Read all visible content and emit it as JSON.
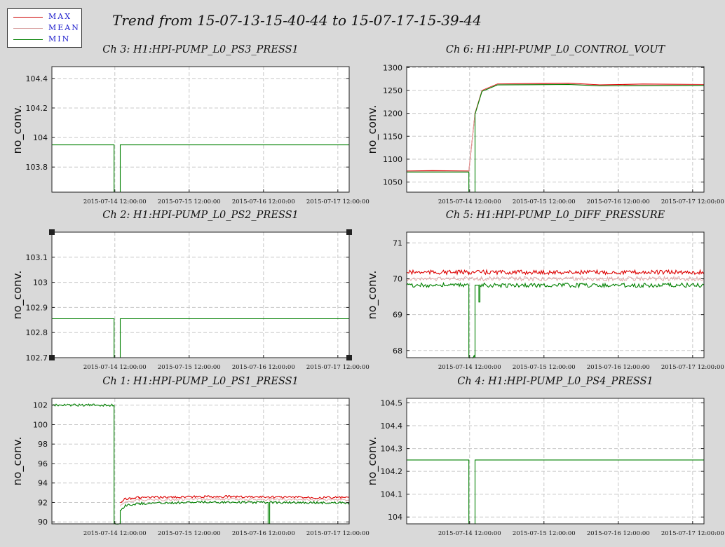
{
  "legend": {
    "items": [
      {
        "label": "MAX",
        "color": "#cc0000"
      },
      {
        "label": "MEAN",
        "color": "#d7a0a0"
      },
      {
        "label": "MIN",
        "color": "#008000"
      }
    ]
  },
  "title": "Trend from 15-07-13-15-40-44 to 15-07-17-15-39-44",
  "colors": {
    "max": "#dd0000",
    "mean": "#e0a8a8",
    "min": "#008000",
    "grid": "#c8c8c8",
    "background": "#d9d9d9"
  },
  "x_tick_labels": [
    "2015-07-14 12:00:00",
    "2015-07-15 12:00:00",
    "2015-07-16 12:00:00",
    "2015-07-17 12:00:00"
  ],
  "chart_data": [
    {
      "type": "line",
      "title": "Ch 3: H1:HPI-PUMP_L0_PS3_PRESS1",
      "ylabel": "no_conv.",
      "x_range": [
        "2015-07-13 15:40:44",
        "2015-07-17 15:39:44"
      ],
      "ylim": [
        103.63,
        104.48
      ],
      "yticks": [
        103.8,
        104,
        104.2,
        104.4
      ],
      "ytick_labels": [
        "103.8",
        "104",
        "104.2",
        "104.4"
      ],
      "grid": true,
      "series": [
        {
          "name": "MIN",
          "points": [
            [
              "2015-07-13 15:40:44",
              103.95
            ],
            [
              "2015-07-14 11:45:00",
              103.95
            ],
            [
              "2015-07-14 11:45:00",
              103.63
            ],
            [
              "2015-07-14 13:45:00",
              103.63
            ],
            [
              "2015-07-14 13:45:00",
              103.95
            ],
            [
              "2015-07-17 15:39:44",
              103.95
            ]
          ]
        }
      ]
    },
    {
      "type": "line",
      "title": "Ch 6: H1:HPI-PUMP_L0_CONTROL_VOUT",
      "ylabel": "no_conv.",
      "x_range": [
        "2015-07-13 15:40:44",
        "2015-07-17 15:39:44"
      ],
      "ylim": [
        1028,
        1302
      ],
      "yticks": [
        1050,
        1100,
        1150,
        1200,
        1250,
        1300
      ],
      "ytick_labels": [
        "1050",
        "1100",
        "1150",
        "1200",
        "1250",
        "1300"
      ],
      "grid": true,
      "series": [
        {
          "name": "MAX",
          "points": [
            [
              "2015-07-13 15:40:44",
              1074
            ],
            [
              "2015-07-14 00:00:00",
              1075
            ],
            [
              "2015-07-14 11:45:00",
              1074
            ],
            [
              "2015-07-14 13:45:00",
              1200
            ],
            [
              "2015-07-14 16:00:00",
              1250
            ],
            [
              "2015-07-14 21:00:00",
              1264
            ],
            [
              "2015-07-15 06:00:00",
              1265
            ],
            [
              "2015-07-15 20:00:00",
              1266
            ],
            [
              "2015-07-16 06:00:00",
              1262
            ],
            [
              "2015-07-16 20:00:00",
              1264
            ],
            [
              "2015-07-17 15:39:44",
              1263
            ]
          ]
        },
        {
          "name": "MEAN",
          "points": [
            [
              "2015-07-13 15:40:44",
              1073
            ],
            [
              "2015-07-14 11:45:00",
              1073
            ],
            [
              "2015-07-14 13:45:00",
              1199
            ],
            [
              "2015-07-14 16:00:00",
              1249
            ],
            [
              "2015-07-14 21:00:00",
              1263
            ],
            [
              "2015-07-15 20:00:00",
              1264
            ],
            [
              "2015-07-16 06:00:00",
              1261
            ],
            [
              "2015-07-17 15:39:44",
              1262
            ]
          ]
        },
        {
          "name": "MIN",
          "points": [
            [
              "2015-07-13 15:40:44",
              1072
            ],
            [
              "2015-07-14 11:45:00",
              1072
            ],
            [
              "2015-07-14 11:45:00",
              1028
            ],
            [
              "2015-07-14 13:45:00",
              1028
            ],
            [
              "2015-07-14 13:45:00",
              1198
            ],
            [
              "2015-07-14 16:00:00",
              1248
            ],
            [
              "2015-07-14 21:00:00",
              1262
            ],
            [
              "2015-07-15 20:00:00",
              1263
            ],
            [
              "2015-07-16 06:00:00",
              1260
            ],
            [
              "2015-07-17 15:39:44",
              1261
            ]
          ]
        }
      ]
    },
    {
      "type": "line",
      "title": "Ch 2: H1:HPI-PUMP_L0_PS2_PRESS1",
      "ylabel": "no_conv.",
      "x_range": [
        "2015-07-13 15:40:44",
        "2015-07-17 15:39:44"
      ],
      "ylim": [
        102.7,
        103.2
      ],
      "yticks": [
        102.7,
        102.8,
        102.9,
        103,
        103.1
      ],
      "ytick_labels": [
        "102.7",
        "102.8",
        "102.9",
        "103",
        "103.1"
      ],
      "grid": true,
      "series": [
        {
          "name": "MIN",
          "points": [
            [
              "2015-07-13 15:40:44",
              102.855
            ],
            [
              "2015-07-14 11:45:00",
              102.855
            ],
            [
              "2015-07-14 11:45:00",
              102.7
            ],
            [
              "2015-07-14 13:45:00",
              102.7
            ],
            [
              "2015-07-14 13:45:00",
              102.855
            ],
            [
              "2015-07-17 15:39:44",
              102.855
            ]
          ]
        }
      ]
    },
    {
      "type": "line",
      "title": "Ch 5: H1:HPI-PUMP_L0_DIFF_PRESSURE",
      "ylabel": "no_conv.",
      "x_range": [
        "2015-07-13 15:40:44",
        "2015-07-17 15:39:44"
      ],
      "ylim": [
        67.8,
        71.3
      ],
      "yticks": [
        68,
        69,
        70,
        71
      ],
      "ytick_labels": [
        "68",
        "69",
        "70",
        "71"
      ],
      "grid": true,
      "series": [
        {
          "name": "MAX",
          "points": [
            [
              "2015-07-13 15:40:44",
              70.18
            ],
            [
              "2015-07-14 11:45:00",
              70.18
            ],
            [
              "2015-07-14 13:45:00",
              70.18
            ],
            [
              "2015-07-17 15:39:44",
              70.18
            ]
          ]
        },
        {
          "name": "MEAN",
          "points": [
            [
              "2015-07-13 15:40:44",
              70.0
            ],
            [
              "2015-07-14 11:45:00",
              70.0
            ],
            [
              "2015-07-14 13:45:00",
              70.0
            ],
            [
              "2015-07-17 15:39:44",
              70.0
            ]
          ]
        },
        {
          "name": "MIN",
          "points": [
            [
              "2015-07-13 15:40:44",
              69.82
            ],
            [
              "2015-07-14 11:45:00",
              69.82
            ],
            [
              "2015-07-14 11:45:00",
              67.8
            ],
            [
              "2015-07-14 13:45:00",
              67.8
            ],
            [
              "2015-07-14 13:45:00",
              69.82
            ],
            [
              "2015-07-14 15:00:00",
              69.82
            ],
            [
              "2015-07-14 15:00:00",
              69.35
            ],
            [
              "2015-07-14 15:20:00",
              69.35
            ],
            [
              "2015-07-14 15:20:00",
              69.82
            ],
            [
              "2015-07-17 15:39:44",
              69.82
            ]
          ]
        }
      ]
    },
    {
      "type": "line",
      "title": "Ch 1: H1:HPI-PUMP_L0_PS1_PRESS1",
      "ylabel": "no_conv.",
      "x_range": [
        "2015-07-13 15:40:44",
        "2015-07-17 15:39:44"
      ],
      "ylim": [
        89.8,
        102.7
      ],
      "yticks": [
        90,
        92,
        94,
        96,
        98,
        100,
        102
      ],
      "ytick_labels": [
        "90",
        "92",
        "94",
        "96",
        "98",
        "100",
        "102"
      ],
      "grid": true,
      "series": [
        {
          "name": "MAX",
          "points": [
            [
              "2015-07-14 13:45:00",
              92.0
            ],
            [
              "2015-07-14 15:30:00",
              92.4
            ],
            [
              "2015-07-14 20:00:00",
              92.5
            ],
            [
              "2015-07-15 20:00:00",
              92.6
            ],
            [
              "2015-07-16 20:00:00",
              92.55
            ],
            [
              "2015-07-17 15:39:44",
              92.5
            ]
          ]
        },
        {
          "name": "MEAN",
          "points": [
            [
              "2015-07-14 13:45:00",
              91.6
            ],
            [
              "2015-07-14 15:30:00",
              92.1
            ],
            [
              "2015-07-14 20:00:00",
              92.25
            ],
            [
              "2015-07-15 20:00:00",
              92.35
            ],
            [
              "2015-07-16 20:00:00",
              92.3
            ],
            [
              "2015-07-17 15:39:44",
              92.25
            ]
          ]
        },
        {
          "name": "MIN",
          "points": [
            [
              "2015-07-13 15:40:44",
              102.0
            ],
            [
              "2015-07-14 11:45:00",
              102.0
            ],
            [
              "2015-07-14 11:45:00",
              89.8
            ],
            [
              "2015-07-14 13:45:00",
              89.8
            ],
            [
              "2015-07-14 13:45:00",
              91.2
            ],
            [
              "2015-07-14 15:30:00",
              91.7
            ],
            [
              "2015-07-14 20:00:00",
              91.9
            ],
            [
              "2015-07-15 20:00:00",
              92.05
            ],
            [
              "2015-07-16 13:30:00",
              92.0
            ],
            [
              "2015-07-16 13:30:00",
              89.8
            ],
            [
              "2015-07-16 14:00:00",
              89.8
            ],
            [
              "2015-07-16 14:00:00",
              92.0
            ],
            [
              "2015-07-17 15:39:44",
              91.95
            ]
          ]
        }
      ]
    },
    {
      "type": "line",
      "title": "Ch 4: H1:HPI-PUMP_L0_PS4_PRESS1",
      "ylabel": "no_conv.",
      "x_range": [
        "2015-07-13 15:40:44",
        "2015-07-17 15:39:44"
      ],
      "ylim": [
        103.97,
        104.52
      ],
      "yticks": [
        104,
        104.1,
        104.2,
        104.3,
        104.4,
        104.5
      ],
      "ytick_labels": [
        "104",
        "104.1",
        "104.2",
        "104.3",
        "104.4",
        "104.5"
      ],
      "grid": true,
      "series": [
        {
          "name": "MIN",
          "points": [
            [
              "2015-07-13 15:40:44",
              104.25
            ],
            [
              "2015-07-14 11:45:00",
              104.25
            ],
            [
              "2015-07-14 11:45:00",
              103.97
            ],
            [
              "2015-07-14 13:45:00",
              103.97
            ],
            [
              "2015-07-14 13:45:00",
              104.25
            ],
            [
              "2015-07-17 15:39:44",
              104.25
            ]
          ]
        }
      ]
    }
  ]
}
